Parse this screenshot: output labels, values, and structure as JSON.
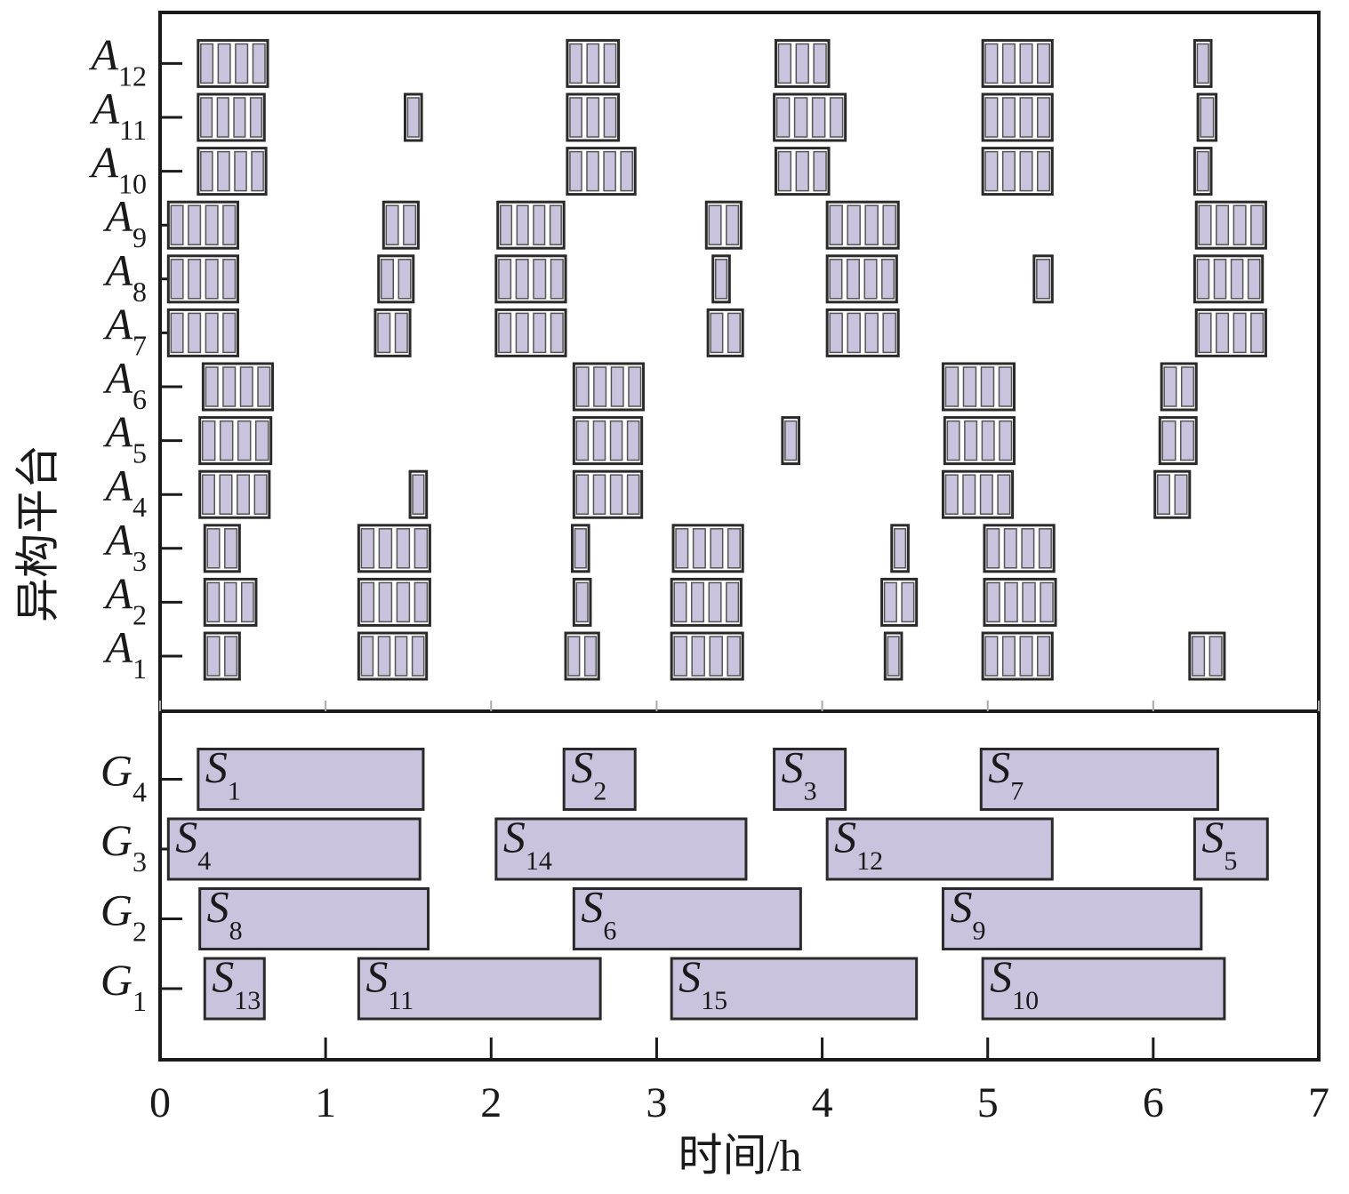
{
  "chart_data": {
    "type": "gantt",
    "xlabel": "时间/h",
    "ylabel": "异构平台",
    "xlim": [
      0,
      7
    ],
    "xticks": [
      0,
      1,
      2,
      3,
      4,
      5,
      6,
      7
    ],
    "fill": "#c9c3dd",
    "stroke": "#2a2a2a",
    "platforms": [
      {
        "letter": "A",
        "index": "1",
        "blocks": [
          {
            "start": 0.27,
            "end": 0.48,
            "cells": 2
          },
          {
            "start": 1.2,
            "end": 1.61,
            "cells": 4
          },
          {
            "start": 2.45,
            "end": 2.65,
            "cells": 2
          },
          {
            "start": 3.09,
            "end": 3.52,
            "cells": 4
          },
          {
            "start": 4.38,
            "end": 4.48,
            "cells": 1
          },
          {
            "start": 4.97,
            "end": 5.39,
            "cells": 4
          },
          {
            "start": 6.22,
            "end": 6.43,
            "cells": 2
          }
        ]
      },
      {
        "letter": "A",
        "index": "2",
        "blocks": [
          {
            "start": 0.27,
            "end": 0.58,
            "cells": 3
          },
          {
            "start": 1.2,
            "end": 1.63,
            "cells": 4
          },
          {
            "start": 2.5,
            "end": 2.6,
            "cells": 1
          },
          {
            "start": 3.09,
            "end": 3.51,
            "cells": 4
          },
          {
            "start": 4.36,
            "end": 4.57,
            "cells": 2
          },
          {
            "start": 4.98,
            "end": 5.41,
            "cells": 4
          }
        ]
      },
      {
        "letter": "A",
        "index": "3",
        "blocks": [
          {
            "start": 0.27,
            "end": 0.48,
            "cells": 2
          },
          {
            "start": 1.2,
            "end": 1.63,
            "cells": 4
          },
          {
            "start": 2.49,
            "end": 2.59,
            "cells": 1
          },
          {
            "start": 3.1,
            "end": 3.52,
            "cells": 4
          },
          {
            "start": 4.42,
            "end": 4.52,
            "cells": 1
          },
          {
            "start": 4.98,
            "end": 5.4,
            "cells": 4
          }
        ]
      },
      {
        "letter": "A",
        "index": "4",
        "blocks": [
          {
            "start": 0.24,
            "end": 0.66,
            "cells": 4
          },
          {
            "start": 1.51,
            "end": 1.61,
            "cells": 1
          },
          {
            "start": 2.5,
            "end": 2.91,
            "cells": 4
          },
          {
            "start": 4.73,
            "end": 5.15,
            "cells": 4
          },
          {
            "start": 6.01,
            "end": 6.22,
            "cells": 2
          }
        ]
      },
      {
        "letter": "A",
        "index": "5",
        "blocks": [
          {
            "start": 0.24,
            "end": 0.67,
            "cells": 4
          },
          {
            "start": 2.5,
            "end": 2.91,
            "cells": 4
          },
          {
            "start": 3.76,
            "end": 3.86,
            "cells": 1
          },
          {
            "start": 4.74,
            "end": 5.16,
            "cells": 4
          },
          {
            "start": 6.04,
            "end": 6.26,
            "cells": 2
          }
        ]
      },
      {
        "letter": "A",
        "index": "6",
        "blocks": [
          {
            "start": 0.26,
            "end": 0.68,
            "cells": 4
          },
          {
            "start": 2.5,
            "end": 2.92,
            "cells": 4
          },
          {
            "start": 4.73,
            "end": 5.16,
            "cells": 4
          },
          {
            "start": 6.05,
            "end": 6.26,
            "cells": 2
          }
        ]
      },
      {
        "letter": "A",
        "index": "7",
        "blocks": [
          {
            "start": 0.05,
            "end": 0.47,
            "cells": 4
          },
          {
            "start": 1.3,
            "end": 1.51,
            "cells": 2
          },
          {
            "start": 2.03,
            "end": 2.45,
            "cells": 4
          },
          {
            "start": 3.31,
            "end": 3.52,
            "cells": 2
          },
          {
            "start": 4.03,
            "end": 4.46,
            "cells": 4
          },
          {
            "start": 6.26,
            "end": 6.68,
            "cells": 4
          }
        ]
      },
      {
        "letter": "A",
        "index": "8",
        "blocks": [
          {
            "start": 0.05,
            "end": 0.47,
            "cells": 4
          },
          {
            "start": 1.32,
            "end": 1.53,
            "cells": 2
          },
          {
            "start": 2.03,
            "end": 2.45,
            "cells": 4
          },
          {
            "start": 3.34,
            "end": 3.44,
            "cells": 1
          },
          {
            "start": 4.03,
            "end": 4.45,
            "cells": 4
          },
          {
            "start": 5.28,
            "end": 5.39,
            "cells": 1
          },
          {
            "start": 6.25,
            "end": 6.66,
            "cells": 4
          }
        ]
      },
      {
        "letter": "A",
        "index": "9",
        "blocks": [
          {
            "start": 0.05,
            "end": 0.47,
            "cells": 4
          },
          {
            "start": 1.35,
            "end": 1.56,
            "cells": 2
          },
          {
            "start": 2.04,
            "end": 2.44,
            "cells": 4
          },
          {
            "start": 3.3,
            "end": 3.51,
            "cells": 2
          },
          {
            "start": 4.03,
            "end": 4.46,
            "cells": 4
          },
          {
            "start": 6.26,
            "end": 6.68,
            "cells": 4
          }
        ]
      },
      {
        "letter": "A",
        "index": "10",
        "blocks": [
          {
            "start": 0.23,
            "end": 0.64,
            "cells": 4
          },
          {
            "start": 2.46,
            "end": 2.87,
            "cells": 4
          },
          {
            "start": 3.72,
            "end": 4.04,
            "cells": 3
          },
          {
            "start": 4.97,
            "end": 5.39,
            "cells": 4
          },
          {
            "start": 6.25,
            "end": 6.35,
            "cells": 1
          }
        ]
      },
      {
        "letter": "A",
        "index": "11",
        "blocks": [
          {
            "start": 0.23,
            "end": 0.63,
            "cells": 4
          },
          {
            "start": 1.48,
            "end": 1.58,
            "cells": 1
          },
          {
            "start": 2.46,
            "end": 2.77,
            "cells": 3
          },
          {
            "start": 3.71,
            "end": 4.14,
            "cells": 4
          },
          {
            "start": 4.97,
            "end": 5.39,
            "cells": 4
          },
          {
            "start": 6.27,
            "end": 6.38,
            "cells": 1
          }
        ]
      },
      {
        "letter": "A",
        "index": "12",
        "blocks": [
          {
            "start": 0.23,
            "end": 0.65,
            "cells": 4
          },
          {
            "start": 2.46,
            "end": 2.77,
            "cells": 3
          },
          {
            "start": 3.72,
            "end": 4.04,
            "cells": 3
          },
          {
            "start": 4.97,
            "end": 5.39,
            "cells": 4
          },
          {
            "start": 6.25,
            "end": 6.35,
            "cells": 1
          }
        ]
      }
    ],
    "groups": [
      {
        "letter": "G",
        "index": "1",
        "tasks": [
          {
            "label": "S",
            "sub": "13",
            "start": 0.27,
            "end": 0.63
          },
          {
            "label": "S",
            "sub": "11",
            "start": 1.2,
            "end": 2.66
          },
          {
            "label": "S",
            "sub": "15",
            "start": 3.09,
            "end": 4.57
          },
          {
            "label": "S",
            "sub": "10",
            "start": 4.97,
            "end": 6.43
          }
        ]
      },
      {
        "letter": "G",
        "index": "2",
        "tasks": [
          {
            "label": "S",
            "sub": "8",
            "start": 0.24,
            "end": 1.62
          },
          {
            "label": "S",
            "sub": "6",
            "start": 2.5,
            "end": 3.87
          },
          {
            "label": "S",
            "sub": "9",
            "start": 4.73,
            "end": 6.29
          }
        ]
      },
      {
        "letter": "G",
        "index": "3",
        "tasks": [
          {
            "label": "S",
            "sub": "4",
            "start": 0.05,
            "end": 1.57
          },
          {
            "label": "S",
            "sub": "14",
            "start": 2.03,
            "end": 3.54
          },
          {
            "label": "S",
            "sub": "12",
            "start": 4.03,
            "end": 5.39
          },
          {
            "label": "S",
            "sub": "5",
            "start": 6.25,
            "end": 6.69
          }
        ]
      },
      {
        "letter": "G",
        "index": "4",
        "tasks": [
          {
            "label": "S",
            "sub": "1",
            "start": 0.23,
            "end": 1.59
          },
          {
            "label": "S",
            "sub": "2",
            "start": 2.44,
            "end": 2.87
          },
          {
            "label": "S",
            "sub": "3",
            "start": 3.71,
            "end": 4.14
          },
          {
            "label": "S",
            "sub": "7",
            "start": 4.96,
            "end": 6.39
          }
        ]
      }
    ]
  }
}
